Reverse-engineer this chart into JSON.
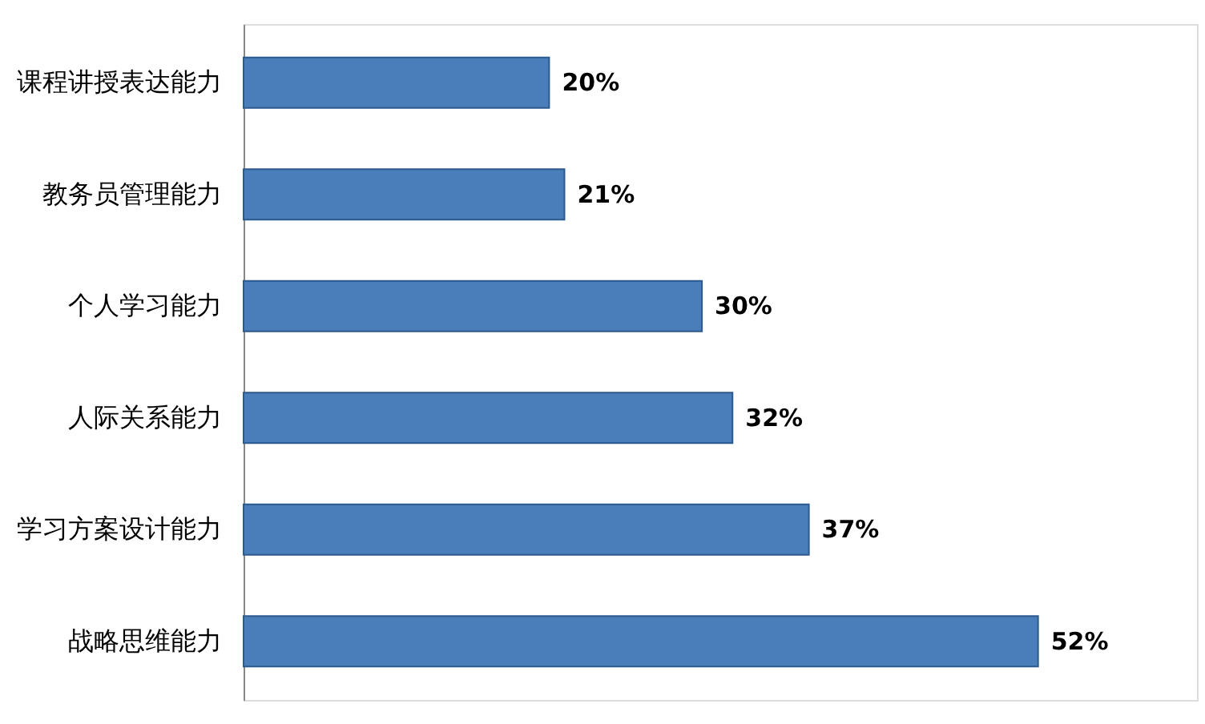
{
  "chart_data": {
    "type": "bar",
    "orientation": "horizontal",
    "categories": [
      "课程讲授表达能力",
      "教务员管理能力",
      "个人学习能力",
      "人际关系能力",
      "学习方案设计能力",
      "战略思维能力"
    ],
    "values": [
      20,
      21,
      30,
      32,
      37,
      52
    ],
    "color": "#4a7ebb",
    "data_labels": true,
    "value_labels": [
      "20%",
      "21%",
      "30%",
      "32%",
      "37%",
      "52%"
    ]
  }
}
